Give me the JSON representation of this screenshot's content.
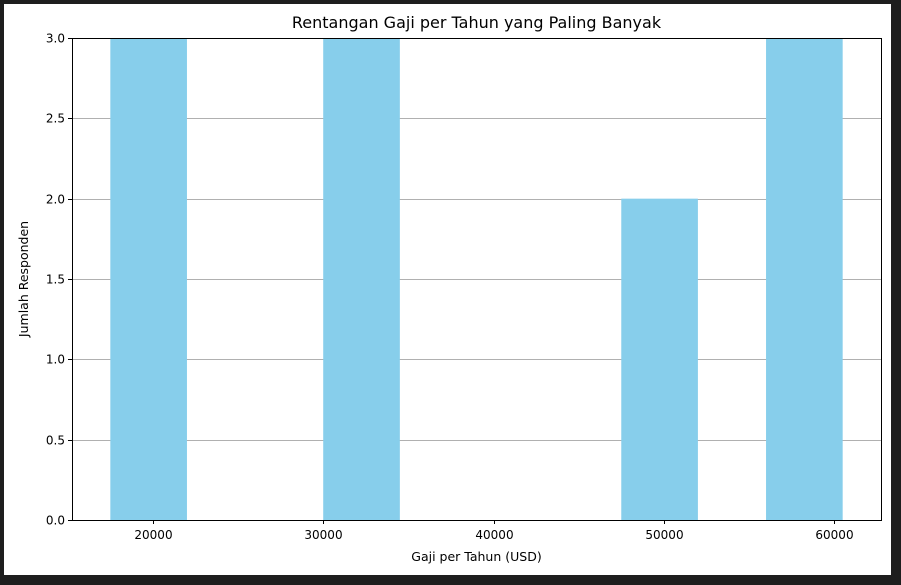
{
  "chart_data": {
    "type": "bar",
    "title": "Rentangan Gaji per Tahun yang Paling Banyak",
    "xlabel": "Gaji per Tahun (USD)",
    "ylabel": "Jumlah Responden",
    "bars": [
      {
        "x_start": 17500,
        "x_end": 22000,
        "value": 3
      },
      {
        "x_start": 30000,
        "x_end": 34500,
        "value": 3
      },
      {
        "x_start": 47500,
        "x_end": 52000,
        "value": 2
      },
      {
        "x_start": 56000,
        "x_end": 60500,
        "value": 3
      }
    ],
    "xticks": [
      20000,
      30000,
      40000,
      50000,
      60000
    ],
    "xtick_labels": [
      "20000",
      "30000",
      "40000",
      "50000",
      "60000"
    ],
    "yticks": [
      0,
      0.5,
      1.0,
      1.5,
      2.0,
      2.5,
      3.0
    ],
    "ytick_labels": [
      "0.0",
      "0.5",
      "1.0",
      "1.5",
      "2.0",
      "2.5",
      "3.0"
    ],
    "xlim": [
      15250,
      62750
    ],
    "ylim": [
      0,
      3.0
    ],
    "grid": "y-axis",
    "colors": {
      "bar": "#87ceeb",
      "grid": "#b0b0b0",
      "axis": "#000000"
    }
  }
}
